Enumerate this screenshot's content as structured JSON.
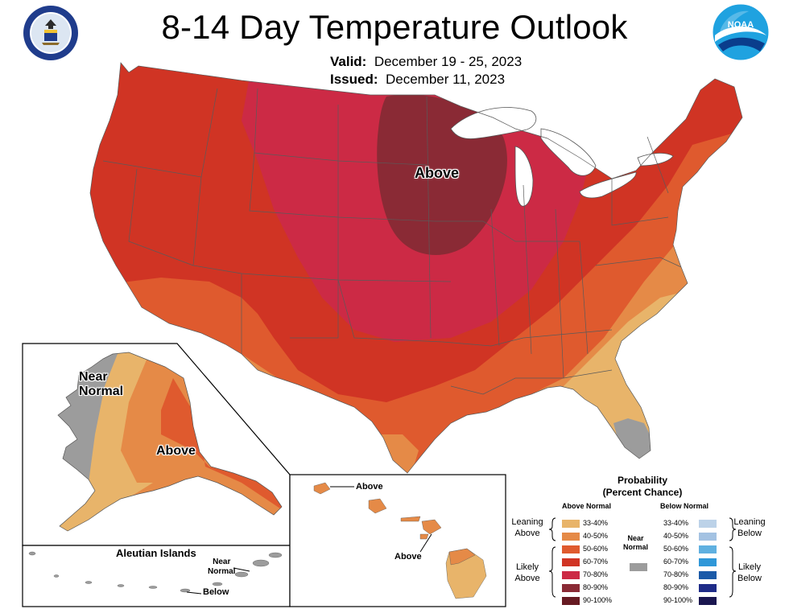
{
  "title": "8-14 Day Temperature Outlook",
  "valid_label": "Valid:",
  "valid_value": "December 19 - 25, 2023",
  "issued_label": "Issued:",
  "issued_value": "December 11, 2023",
  "map_labels": {
    "conus_above": "Above",
    "alaska_near": "Near",
    "alaska_normal": "Normal",
    "alaska_above": "Above",
    "aleutian_title": "Aleutian Islands",
    "aleutian_near": "Near",
    "aleutian_normal": "Normal",
    "aleutian_below": "Below",
    "hawaii_above_1": "Above",
    "hawaii_above_2": "Above"
  },
  "legend": {
    "title_1": "Probability",
    "title_2": "(Percent Chance)",
    "above_header": "Above Normal",
    "below_header": "Below Normal",
    "leaning_above_1": "Leaning",
    "leaning_above_2": "Above",
    "likely_above_1": "Likely",
    "likely_above_2": "Above",
    "leaning_below_1": "Leaning",
    "leaning_below_2": "Below",
    "likely_below_1": "Likely",
    "likely_below_2": "Below",
    "near_1": "Near",
    "near_2": "Normal",
    "above_bins": [
      {
        "label": "33-40%",
        "color": "#e8b46a"
      },
      {
        "label": "40-50%",
        "color": "#e58a47"
      },
      {
        "label": "50-60%",
        "color": "#df5a2e"
      },
      {
        "label": "60-70%",
        "color": "#d03424"
      },
      {
        "label": "70-80%",
        "color": "#cc2a45"
      },
      {
        "label": "80-90%",
        "color": "#8a2a35"
      },
      {
        "label": "90-100%",
        "color": "#661a22"
      }
    ],
    "below_bins": [
      {
        "label": "33-40%",
        "color": "#bcd2e8"
      },
      {
        "label": "40-50%",
        "color": "#a3c2e2"
      },
      {
        "label": "50-60%",
        "color": "#5fb0e0"
      },
      {
        "label": "60-70%",
        "color": "#2f97d8"
      },
      {
        "label": "70-80%",
        "color": "#1b5aa8"
      },
      {
        "label": "80-90%",
        "color": "#1e2b88"
      },
      {
        "label": "90-100%",
        "color": "#1a1650"
      }
    ],
    "near_color": "#9c9c9c"
  },
  "colors": {
    "lake_fill": "#ffffff",
    "border": "#555555"
  }
}
